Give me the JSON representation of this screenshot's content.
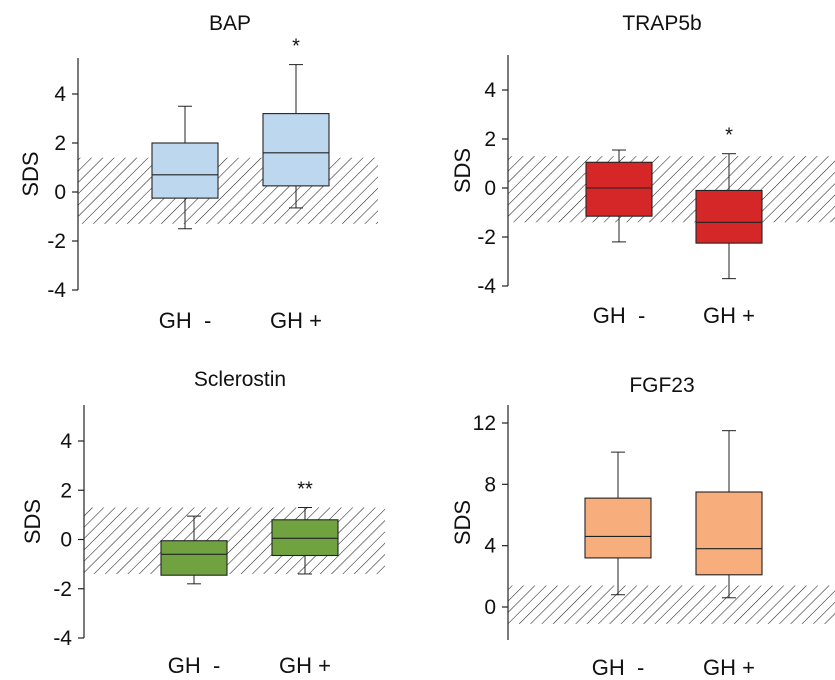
{
  "chart_data": [
    {
      "type": "box",
      "title": "BAP",
      "ylabel": "SDS",
      "ylim": [
        -4,
        5.5
      ],
      "yticks": [
        -4,
        -2,
        0,
        2,
        4
      ],
      "categories": [
        "GH  -",
        "GH +"
      ],
      "reference_band": [
        -1.3,
        1.4
      ],
      "box_color": "#bdd7ee",
      "boxes": [
        {
          "whisker_low": -1.5,
          "q1": -0.25,
          "median": 0.7,
          "q3": 2.0,
          "whisker_high": 3.5,
          "annotation": ""
        },
        {
          "whisker_low": -0.65,
          "q1": 0.25,
          "median": 1.6,
          "q3": 3.2,
          "whisker_high": 5.2,
          "annotation": "*"
        }
      ]
    },
    {
      "type": "box",
      "title": "TRAP5b",
      "ylabel": "SDS",
      "ylim": [
        -4,
        5.5
      ],
      "yticks": [
        -4,
        -2,
        0,
        2,
        4
      ],
      "categories": [
        "GH  -",
        "GH +"
      ],
      "reference_band": [
        -1.4,
        1.3
      ],
      "box_color": "#d62728",
      "boxes": [
        {
          "whisker_low": -2.2,
          "q1": -1.15,
          "median": 0.0,
          "q3": 1.05,
          "whisker_high": 1.55,
          "annotation": ""
        },
        {
          "whisker_low": -3.7,
          "q1": -2.25,
          "median": -1.4,
          "q3": -0.1,
          "whisker_high": 1.4,
          "annotation": "*"
        }
      ]
    },
    {
      "type": "box",
      "title": "Sclerostin",
      "ylabel": "SDS",
      "ylim": [
        -4,
        5.5
      ],
      "yticks": [
        -4,
        -2,
        0,
        2,
        4
      ],
      "categories": [
        "GH  -",
        "GH +"
      ],
      "reference_band": [
        -1.4,
        1.3
      ],
      "box_color": "#70a33f",
      "boxes": [
        {
          "whisker_low": -1.8,
          "q1": -1.45,
          "median": -0.6,
          "q3": -0.05,
          "whisker_high": 0.95,
          "annotation": ""
        },
        {
          "whisker_low": -1.4,
          "q1": -0.65,
          "median": 0.05,
          "q3": 0.8,
          "whisker_high": 1.3,
          "annotation": "**"
        }
      ]
    },
    {
      "type": "box",
      "title": "FGF23",
      "ylabel": "SDS",
      "ylim": [
        -1.3,
        13.2
      ],
      "yticks": [
        0,
        4,
        8,
        12
      ],
      "categories": [
        "GH  -",
        "GH +"
      ],
      "reference_band": [
        -1.1,
        1.4
      ],
      "box_color": "#f8ad7c",
      "boxes": [
        {
          "whisker_low": 0.8,
          "q1": 3.2,
          "median": 4.6,
          "q3": 7.1,
          "whisker_high": 10.1,
          "annotation": ""
        },
        {
          "whisker_low": 0.6,
          "q1": 2.1,
          "median": 3.8,
          "q3": 7.5,
          "whisker_high": 11.5,
          "annotation": ""
        }
      ]
    }
  ]
}
